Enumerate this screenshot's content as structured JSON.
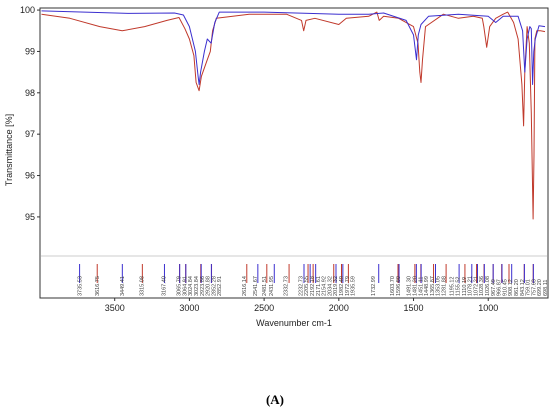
{
  "caption": "(A)",
  "chart_data": {
    "type": "line",
    "title": "",
    "xlabel": "Wavenumber cm-1",
    "ylabel": "Transmittance [%]",
    "x_reversed": true,
    "xlim": [
      4000,
      600
    ],
    "ylim": [
      94.2,
      100.05
    ],
    "grid": false,
    "legend": "none",
    "x_ticks": [
      3500,
      3000,
      2500,
      2000,
      1500,
      1000
    ],
    "y_ticks": [
      95,
      96,
      97,
      98,
      99,
      100
    ],
    "series": [
      {
        "color": "#c0392b",
        "points": [
          [
            3990,
            99.9
          ],
          [
            3800,
            99.8
          ],
          [
            3600,
            99.6
          ],
          [
            3450,
            99.5
          ],
          [
            3300,
            99.6
          ],
          [
            3150,
            99.75
          ],
          [
            3070,
            99.82
          ],
          [
            3030,
            99.55
          ],
          [
            3000,
            99.3
          ],
          [
            2970,
            98.9
          ],
          [
            2955,
            98.25
          ],
          [
            2935,
            98.05
          ],
          [
            2920,
            98.4
          ],
          [
            2880,
            98.8
          ],
          [
            2860,
            99.0
          ],
          [
            2845,
            99.5
          ],
          [
            2820,
            99.8
          ],
          [
            2600,
            99.9
          ],
          [
            2350,
            99.9
          ],
          [
            2250,
            99.75
          ],
          [
            2235,
            99.5
          ],
          [
            2220,
            99.75
          ],
          [
            2160,
            99.8
          ],
          [
            2000,
            99.65
          ],
          [
            1950,
            99.8
          ],
          [
            1800,
            99.85
          ],
          [
            1745,
            99.95
          ],
          [
            1730,
            99.75
          ],
          [
            1700,
            99.85
          ],
          [
            1600,
            99.8
          ],
          [
            1500,
            99.6
          ],
          [
            1470,
            99.2
          ],
          [
            1458,
            98.5
          ],
          [
            1450,
            98.25
          ],
          [
            1440,
            98.8
          ],
          [
            1420,
            99.6
          ],
          [
            1300,
            99.9
          ],
          [
            1200,
            99.8
          ],
          [
            1100,
            99.85
          ],
          [
            1040,
            99.8
          ],
          [
            1030,
            99.6
          ],
          [
            1010,
            99.1
          ],
          [
            990,
            99.6
          ],
          [
            950,
            99.8
          ],
          [
            900,
            99.9
          ],
          [
            870,
            99.95
          ],
          [
            830,
            99.7
          ],
          [
            800,
            99.3
          ],
          [
            775,
            98.2
          ],
          [
            763,
            97.2
          ],
          [
            755,
            98.5
          ],
          [
            740,
            99.6
          ],
          [
            725,
            99.2
          ],
          [
            712,
            97.5
          ],
          [
            700,
            94.95
          ],
          [
            694,
            96.5
          ],
          [
            688,
            99.3
          ],
          [
            675,
            99.5
          ],
          [
            650,
            99.5
          ],
          [
            620,
            99.48
          ]
        ]
      },
      {
        "color": "#3b2fcf",
        "points": [
          [
            3990,
            99.98
          ],
          [
            3700,
            99.95
          ],
          [
            3400,
            99.92
          ],
          [
            3100,
            99.93
          ],
          [
            3040,
            99.88
          ],
          [
            3000,
            99.6
          ],
          [
            2960,
            99.0
          ],
          [
            2942,
            98.4
          ],
          [
            2935,
            98.2
          ],
          [
            2925,
            98.5
          ],
          [
            2900,
            99.0
          ],
          [
            2880,
            99.3
          ],
          [
            2855,
            99.2
          ],
          [
            2830,
            99.7
          ],
          [
            2800,
            99.95
          ],
          [
            2500,
            99.95
          ],
          [
            2200,
            99.92
          ],
          [
            2000,
            99.9
          ],
          [
            1800,
            99.9
          ],
          [
            1700,
            99.93
          ],
          [
            1550,
            99.75
          ],
          [
            1500,
            99.4
          ],
          [
            1480,
            98.8
          ],
          [
            1468,
            99.4
          ],
          [
            1450,
            99.65
          ],
          [
            1400,
            99.85
          ],
          [
            1200,
            99.9
          ],
          [
            1000,
            99.85
          ],
          [
            950,
            99.7
          ],
          [
            900,
            99.85
          ],
          [
            800,
            99.85
          ],
          [
            770,
            99.5
          ],
          [
            755,
            98.5
          ],
          [
            740,
            99.3
          ],
          [
            722,
            99.6
          ],
          [
            712,
            99.55
          ],
          [
            703,
            98.2
          ],
          [
            695,
            99.0
          ],
          [
            685,
            99.3
          ],
          [
            660,
            99.62
          ],
          [
            620,
            99.6
          ]
        ]
      }
    ],
    "peak_labels": [
      "3735.53",
      "3616.75",
      "3449.41",
      "3315.08",
      "3167.40",
      "3065.79",
      "3064.91",
      "3024.84",
      "3023.84",
      "2923.86",
      "2920.88",
      "2852.28",
      "2852.91",
      "2616.14",
      "2541.67",
      "2481.51",
      "2431.95",
      "2332.73",
      "2232.73",
      "2205.55",
      "2192.18",
      "2171.61",
      "2154.92",
      "2034.32",
      "2019.32",
      "1982.49",
      "1972.79",
      "1935.59",
      "1732.99",
      "1603.70",
      "1596.80",
      "1491.30",
      "1481.20",
      "1451.11",
      "1448.99",
      "1365.87",
      "1353.05",
      "1281.88",
      "1195.12",
      "1155.52",
      "1110.19",
      "1078.21",
      "1072.21",
      "1028.36",
      "1026.08",
      "967.49",
      "966.87",
      "910.45",
      "908.12",
      "861.20",
      "843.12",
      "759.01",
      "757.63",
      "699.20",
      "698.11"
    ],
    "peak_positions": [
      3735,
      3617,
      3449,
      3315,
      3167,
      3066,
      3065,
      3025,
      3024,
      2924,
      2921,
      2852,
      2853,
      2616,
      2542,
      2482,
      2432,
      2333,
      2233,
      2206,
      2192,
      2172,
      2155,
      2034,
      2019,
      1982,
      1973,
      1936,
      1733,
      1604,
      1597,
      1491,
      1481,
      1451,
      1449,
      1366,
      1353,
      1282,
      1195,
      1156,
      1110,
      1078,
      1072,
      1028,
      1026,
      967,
      967,
      910,
      908,
      861,
      843,
      759,
      758,
      699,
      698
    ]
  }
}
